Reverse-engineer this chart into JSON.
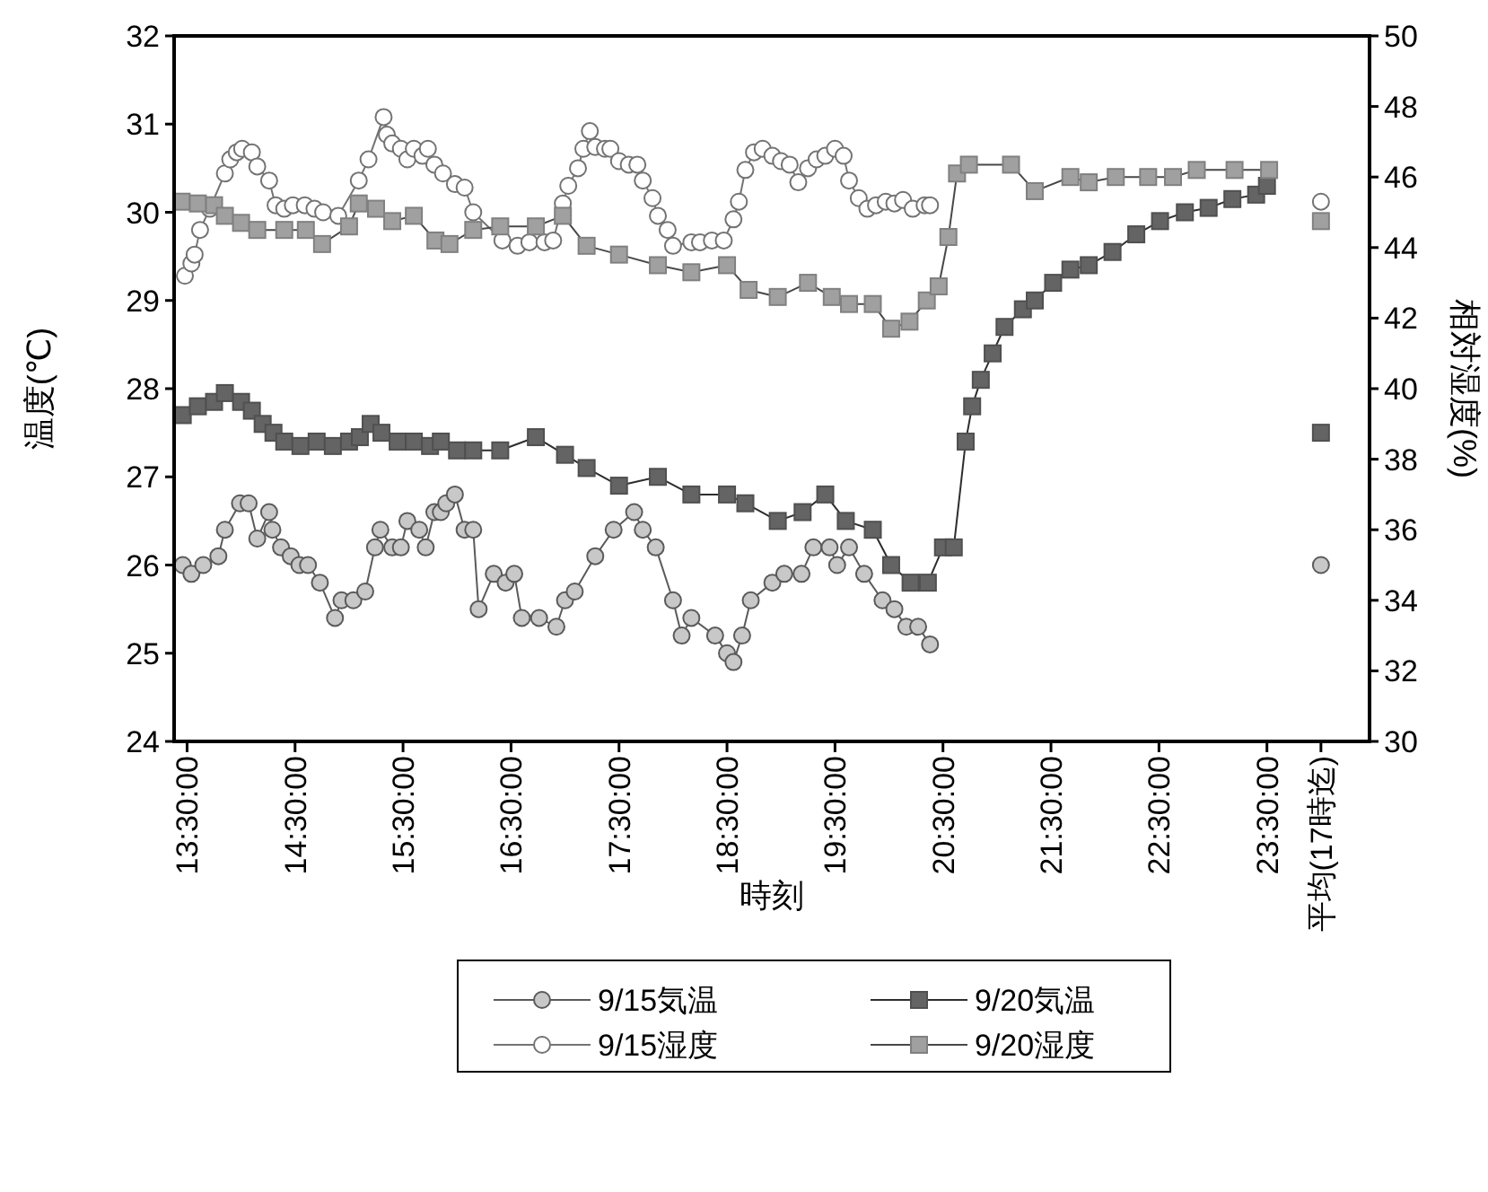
{
  "chart_data": {
    "type": "line",
    "xlabel": "時刻",
    "ylabel": "温度(℃)",
    "y2label": "相対湿度(%)",
    "xlim": [
      13.38,
      24.45
    ],
    "xticks": [
      {
        "value": 13.5,
        "label": "13:30:00"
      },
      {
        "value": 14.5,
        "label": "14:30:00"
      },
      {
        "value": 15.5,
        "label": "15:30:00"
      },
      {
        "value": 16.5,
        "label": "16:30:00"
      },
      {
        "value": 17.5,
        "label": "17:30:00"
      },
      {
        "value": 18.5,
        "label": "18:30:00"
      },
      {
        "value": 19.5,
        "label": "19:30:00"
      },
      {
        "value": 20.5,
        "label": "20:30:00"
      },
      {
        "value": 21.5,
        "label": "21:30:00"
      },
      {
        "value": 22.5,
        "label": "22:30:00"
      },
      {
        "value": 23.5,
        "label": "23:30:00"
      },
      {
        "value": 24.0,
        "label": "平均(17時迄)"
      }
    ],
    "ylim": [
      24,
      32
    ],
    "yticks": [
      24,
      25,
      26,
      27,
      28,
      29,
      30,
      31,
      32
    ],
    "y2lim": [
      30,
      50
    ],
    "y2ticks": [
      30,
      32,
      34,
      36,
      38,
      40,
      42,
      44,
      46,
      48,
      50
    ],
    "legend": "bottom",
    "grid": false,
    "series": [
      {
        "name": "9/15気温",
        "color": "#c8c8c8",
        "marker": "circle",
        "x": [
          13.46,
          13.54,
          13.65,
          13.79,
          13.85,
          13.99,
          14.07,
          14.15,
          14.26,
          14.29,
          14.37,
          14.46,
          14.54,
          14.62,
          14.73,
          14.87,
          14.93,
          15.04,
          15.15,
          15.24,
          15.29,
          15.4,
          15.48,
          15.54,
          15.65,
          15.71,
          15.79,
          15.85,
          15.9,
          15.98,
          16.07,
          16.15,
          16.2,
          16.34,
          16.45,
          16.53,
          16.6,
          16.76,
          16.92,
          17.0,
          17.09,
          17.28,
          17.45,
          17.64,
          17.72,
          17.84,
          18.0,
          18.08,
          18.17,
          18.39,
          18.5,
          18.56,
          18.64,
          18.72,
          18.92,
          19.03,
          19.19,
          19.3,
          19.45,
          19.52,
          19.63,
          19.77,
          19.94,
          20.05,
          20.16,
          20.27,
          20.38
        ],
        "values": [
          26.0,
          25.9,
          26.0,
          26.1,
          26.4,
          26.7,
          26.7,
          26.3,
          26.6,
          26.4,
          26.2,
          26.1,
          26.0,
          26.0,
          25.8,
          25.4,
          25.6,
          25.6,
          25.7,
          26.2,
          26.4,
          26.2,
          26.2,
          26.5,
          26.4,
          26.2,
          26.6,
          26.6,
          26.7,
          26.8,
          26.4,
          26.4,
          25.5,
          25.9,
          25.8,
          25.9,
          25.4,
          25.4,
          25.3,
          25.6,
          25.7,
          26.1,
          26.4,
          26.6,
          26.4,
          26.2,
          25.6,
          25.2,
          25.4,
          25.2,
          25.0,
          24.9,
          25.2,
          25.6,
          25.8,
          25.9,
          25.9,
          26.2,
          26.2,
          26.0,
          26.2,
          25.9,
          25.6,
          25.5,
          25.3,
          25.3,
          25.1
        ]
      },
      {
        "name": "9/20気温",
        "color": "#646464",
        "marker": "square",
        "x": [
          13.46,
          13.6,
          13.75,
          13.85,
          14.0,
          14.1,
          14.2,
          14.3,
          14.4,
          14.55,
          14.7,
          14.85,
          15.0,
          15.1,
          15.2,
          15.3,
          15.45,
          15.6,
          15.75,
          15.85,
          16.0,
          16.15,
          16.4,
          16.73,
          17.0,
          17.2,
          17.5,
          17.86,
          18.17,
          18.5,
          18.67,
          18.97,
          19.2,
          19.41,
          19.6,
          19.85,
          20.02,
          20.2,
          20.36,
          20.5,
          20.6,
          20.71,
          20.77,
          20.85,
          20.96,
          21.07,
          21.24,
          21.35,
          21.52,
          21.68,
          21.85,
          22.07,
          22.29,
          22.51,
          22.74,
          22.96,
          23.18,
          23.4,
          23.5
        ],
        "values": [
          27.7,
          27.8,
          27.85,
          27.95,
          27.85,
          27.75,
          27.6,
          27.5,
          27.4,
          27.35,
          27.4,
          27.35,
          27.4,
          27.45,
          27.6,
          27.5,
          27.4,
          27.4,
          27.35,
          27.4,
          27.3,
          27.3,
          27.3,
          27.45,
          27.25,
          27.1,
          26.9,
          27.0,
          26.8,
          26.8,
          26.7,
          26.5,
          26.6,
          26.8,
          26.5,
          26.4,
          26.0,
          25.8,
          25.8,
          26.2,
          26.2,
          27.4,
          27.8,
          28.1,
          28.4,
          28.7,
          28.9,
          29.0,
          29.2,
          29.35,
          29.4,
          29.55,
          29.75,
          29.9,
          30.0,
          30.05,
          30.15,
          30.2,
          30.3
        ]
      },
      {
        "name": "9/15湿度",
        "color": "#ffffff",
        "marker": "circle",
        "axis": "y2",
        "x": [
          13.48,
          13.54,
          13.57,
          13.62,
          13.71,
          13.85,
          13.9,
          13.96,
          14.01,
          14.1,
          14.15,
          14.26,
          14.32,
          14.4,
          14.48,
          14.59,
          14.68,
          14.76,
          14.9,
          15.09,
          15.18,
          15.32,
          15.35,
          15.4,
          15.48,
          15.54,
          15.6,
          15.68,
          15.73,
          15.79,
          15.87,
          15.98,
          16.07,
          16.15,
          16.42,
          16.56,
          16.67,
          16.81,
          16.89,
          16.98,
          17.03,
          17.12,
          17.17,
          17.23,
          17.28,
          17.37,
          17.42,
          17.5,
          17.59,
          17.67,
          17.72,
          17.81,
          17.86,
          17.95,
          18.0,
          18.17,
          18.25,
          18.36,
          18.47,
          18.56,
          18.61,
          18.67,
          18.75,
          18.83,
          18.92,
          19.0,
          19.08,
          19.16,
          19.25,
          19.33,
          19.41,
          19.5,
          19.58,
          19.63,
          19.72,
          19.8,
          19.88,
          19.97,
          20.05,
          20.13,
          20.22,
          20.33,
          20.38
        ],
        "values": [
          43.2,
          43.55,
          43.8,
          44.5,
          45.1,
          46.1,
          46.5,
          46.7,
          46.8,
          46.7,
          46.3,
          45.9,
          45.2,
          45.1,
          45.2,
          45.2,
          45.1,
          45.0,
          44.9,
          45.9,
          46.5,
          47.7,
          47.2,
          46.95,
          46.8,
          46.5,
          46.8,
          46.6,
          46.8,
          46.35,
          46.1,
          45.8,
          45.7,
          45.0,
          44.2,
          44.05,
          44.15,
          44.15,
          44.2,
          45.25,
          45.75,
          46.25,
          46.8,
          47.3,
          46.85,
          46.8,
          46.8,
          46.45,
          46.35,
          46.35,
          45.9,
          45.4,
          44.9,
          44.5,
          44.05,
          44.15,
          44.15,
          44.2,
          44.2,
          44.8,
          45.3,
          46.2,
          46.7,
          46.8,
          46.6,
          46.45,
          46.35,
          45.85,
          46.25,
          46.5,
          46.6,
          46.8,
          46.6,
          45.9,
          45.4,
          45.1,
          45.2,
          45.3,
          45.25,
          45.35,
          45.1,
          45.2,
          45.2
        ]
      },
      {
        "name": "9/20湿度",
        "color": "#a0a0a0",
        "marker": "square",
        "axis": "y2",
        "x": [
          13.45,
          13.6,
          13.75,
          13.85,
          14.0,
          14.15,
          14.4,
          14.6,
          14.75,
          15.0,
          15.09,
          15.25,
          15.4,
          15.6,
          15.8,
          15.93,
          16.15,
          16.4,
          16.73,
          16.98,
          17.2,
          17.5,
          17.86,
          18.17,
          18.5,
          18.7,
          18.97,
          19.25,
          19.47,
          19.63,
          19.85,
          20.02,
          20.19,
          20.35,
          20.46,
          20.55,
          20.63,
          20.74,
          21.13,
          21.35,
          21.68,
          21.85,
          22.1,
          22.4,
          22.63,
          22.85,
          23.2,
          23.52
        ],
        "values": [
          45.3,
          45.25,
          45.2,
          44.9,
          44.7,
          44.5,
          44.5,
          44.5,
          44.1,
          44.6,
          45.25,
          45.1,
          44.75,
          44.9,
          44.2,
          44.1,
          44.5,
          44.6,
          44.6,
          44.9,
          44.05,
          43.8,
          43.5,
          43.3,
          43.5,
          42.8,
          42.6,
          43.0,
          42.6,
          42.4,
          42.4,
          41.7,
          41.9,
          42.5,
          42.9,
          44.3,
          46.1,
          46.35,
          46.35,
          45.6,
          46.0,
          45.85,
          46.0,
          46.0,
          46.0,
          46.2,
          46.2,
          46.2
        ]
      },
      {
        "type": "scatter",
        "color": "#c8c8c8",
        "marker": "circle",
        "x": [
          24.0
        ],
        "values": [
          26.0
        ]
      },
      {
        "type": "scatter",
        "color": "#646464",
        "marker": "square",
        "x": [
          24.0
        ],
        "values": [
          27.5
        ]
      },
      {
        "type": "scatter",
        "color": "#ffffff",
        "marker": "circle",
        "axis": "y2",
        "x": [
          24.0
        ],
        "values": [
          45.3
        ]
      },
      {
        "type": "scatter",
        "color": "#a0a0a0",
        "marker": "square",
        "axis": "y2",
        "x": [
          24.0
        ],
        "values": [
          44.75
        ]
      }
    ]
  }
}
